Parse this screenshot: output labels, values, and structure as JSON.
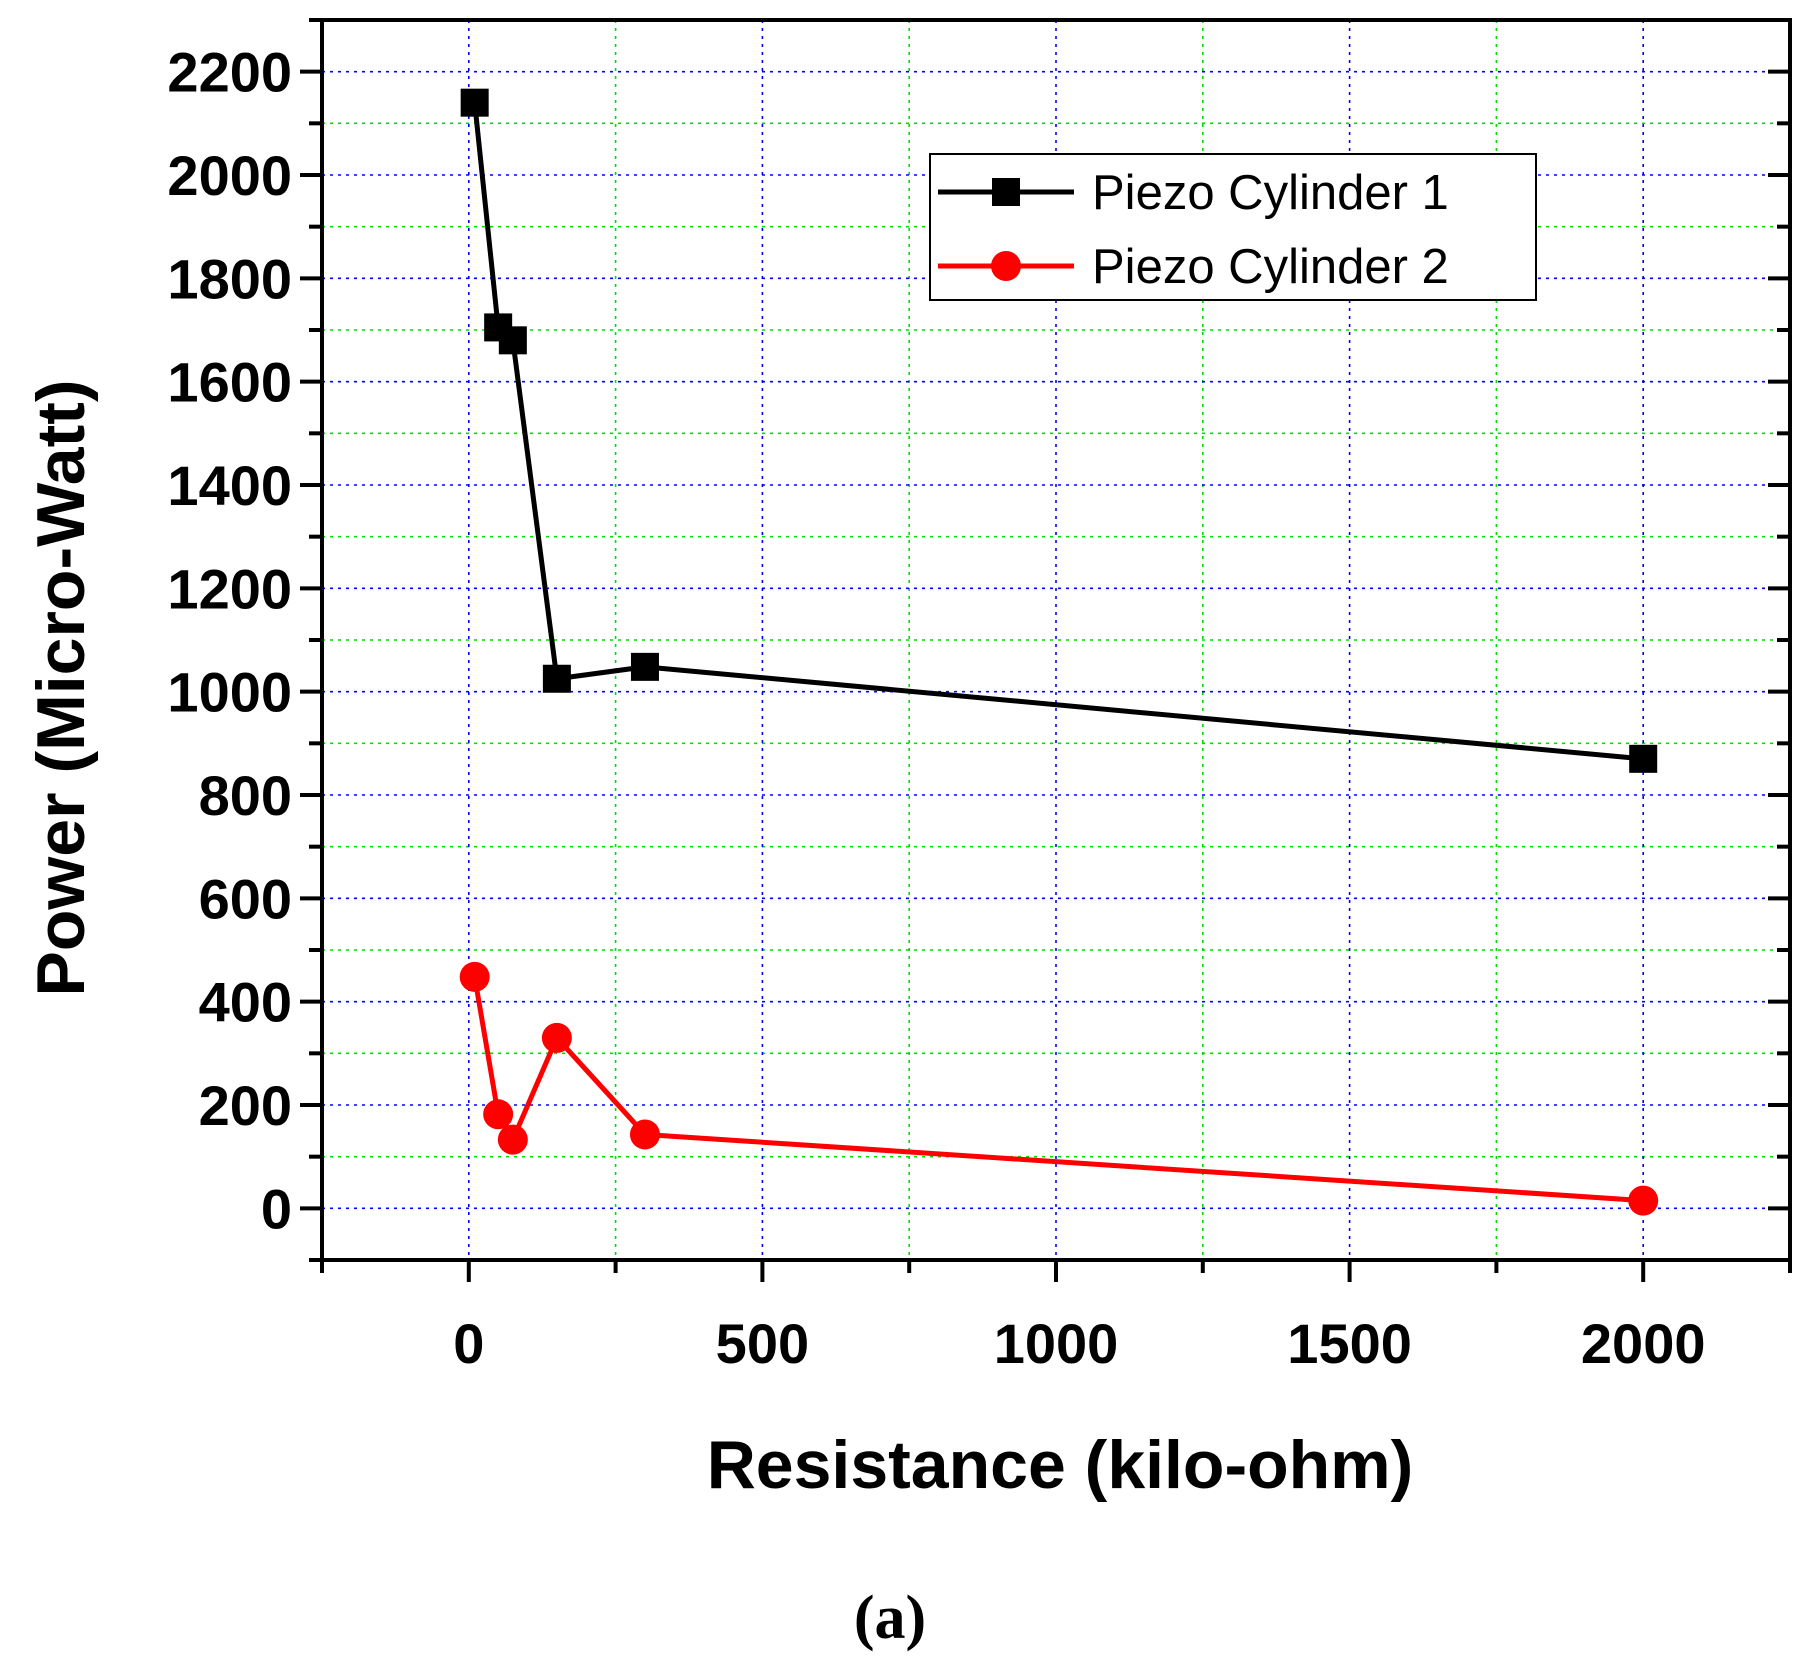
{
  "chart_data": {
    "type": "line",
    "xlabel": "Resistance (kilo-ohm)",
    "ylabel": "Power (Micro-Watt)",
    "caption": "(a)",
    "xlim": [
      -250,
      2250
    ],
    "ylim": [
      -100,
      2300
    ],
    "x_ticks": [
      0,
      500,
      1000,
      1500,
      2000
    ],
    "x_tick_labels": [
      "0",
      "500",
      "1000",
      "1500",
      "2000"
    ],
    "y_ticks": [
      0,
      200,
      400,
      600,
      800,
      1000,
      1200,
      1400,
      1600,
      1800,
      2000,
      2200
    ],
    "y_tick_labels": [
      "0",
      "200",
      "400",
      "600",
      "800",
      "1000",
      "1200",
      "1400",
      "1600",
      "1800",
      "2000",
      "2200"
    ],
    "grid": true,
    "legend_position": "top-right",
    "series": [
      {
        "name": "Piezo Cylinder 1",
        "color": "#000000",
        "marker": "square",
        "points": [
          {
            "x": 10,
            "y": 2140
          },
          {
            "x": 50,
            "y": 1705
          },
          {
            "x": 75,
            "y": 1680
          },
          {
            "x": 150,
            "y": 1025
          },
          {
            "x": 300,
            "y": 1048
          },
          {
            "x": 2000,
            "y": 870
          }
        ]
      },
      {
        "name": "Piezo Cylinder 2",
        "color": "#ff0000",
        "marker": "circle",
        "points": [
          {
            "x": 10,
            "y": 448
          },
          {
            "x": 50,
            "y": 182
          },
          {
            "x": 75,
            "y": 133
          },
          {
            "x": 150,
            "y": 330
          },
          {
            "x": 300,
            "y": 143
          },
          {
            "x": 2000,
            "y": 15
          }
        ]
      }
    ]
  }
}
